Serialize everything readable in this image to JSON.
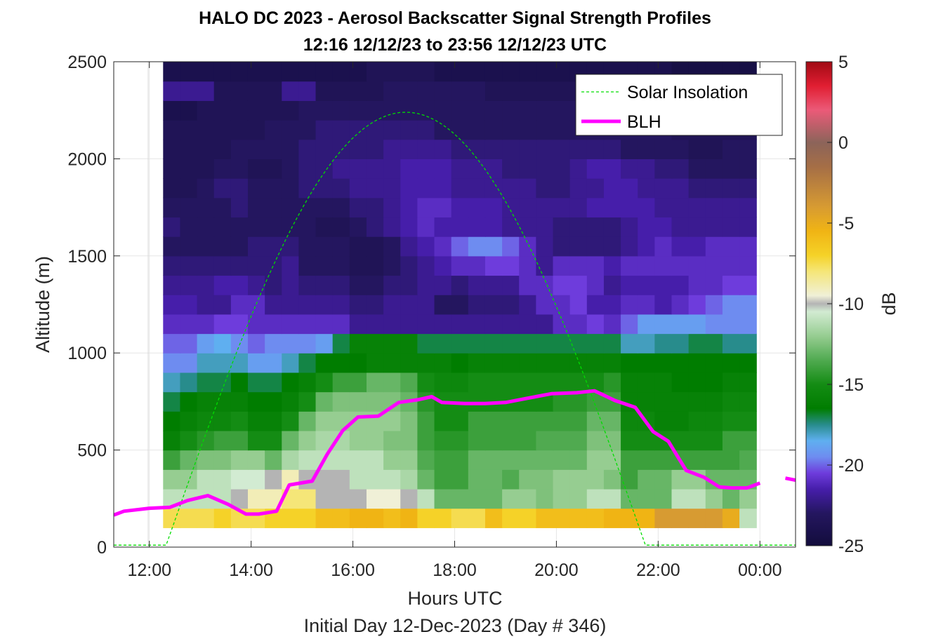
{
  "chart_data": {
    "type": "heatmap",
    "title": "HALO DC 2023 - Aerosol Backscatter Signal Strength Profiles",
    "subtitle": "12:16 12/12/23 to 23:56 12/12/23  UTC",
    "xlabel": "Hours UTC",
    "footer": "Initial Day 12-Dec-2023 (Day # 346)",
    "ylabel": "Altitude (m)",
    "colorbar_label": "dB",
    "xlim_hours": [
      11.3,
      24.7
    ],
    "ylim": [
      0,
      2500
    ],
    "x_ticks": [
      12,
      14,
      16,
      18,
      20,
      22,
      24
    ],
    "x_tick_labels": [
      "12:00",
      "14:00",
      "16:00",
      "18:00",
      "20:00",
      "22:00",
      "00:00"
    ],
    "y_ticks": [
      0,
      500,
      1000,
      1500,
      2000,
      2500
    ],
    "y_tick_labels": [
      "0",
      "500",
      "1000",
      "1500",
      "2000",
      "2500"
    ],
    "clim": [
      -25,
      5
    ],
    "c_ticks": [
      5,
      0,
      -5,
      -10,
      -15,
      -20,
      -25
    ],
    "c_tick_labels": [
      "5",
      "0",
      "-5",
      "-10",
      "-15",
      "-20",
      "-25"
    ],
    "grid": true,
    "legend_position": "top-right",
    "legend": [
      {
        "label": "Solar Insolation",
        "color": "#00dd00",
        "style": "dashed"
      },
      {
        "label": "BLH",
        "color": "#ff00ff",
        "style": "solid"
      }
    ],
    "heatmap": {
      "x_start_hours": 12.27,
      "x_end_hours": 23.93,
      "columns": 35,
      "y_start": 100,
      "y_end": 2500,
      "rows": 24,
      "value_units": "dB",
      "rows_bottom_to_top": [
        [
          -7.5,
          -7.5,
          -7.5,
          -7,
          -7.5,
          -7.5,
          -7,
          -7,
          -7,
          -6,
          -6,
          -5.5,
          -5.5,
          -6,
          -5.5,
          -7,
          -7,
          -7.5,
          -7.5,
          -6,
          -7,
          -7,
          -6,
          -6,
          -6,
          -6,
          -5.5,
          -5.5,
          -5.5,
          -4,
          -4,
          -4,
          -4,
          -5,
          -11
        ],
        [
          -11,
          -11,
          -11,
          -11,
          -10,
          -9,
          -9,
          -8,
          -8,
          -10,
          -10,
          -10,
          -9.5,
          -9.5,
          -10,
          -11,
          -13,
          -13,
          -13,
          -13,
          -12,
          -12,
          -12.5,
          -12,
          -12,
          -11,
          -11,
          -13,
          -13,
          -13,
          -11,
          -11,
          -12,
          -13,
          -12
        ],
        [
          -12,
          -12,
          -11,
          -11,
          -10.5,
          -10.5,
          -10,
          -9,
          -10,
          -10,
          -10,
          -11,
          -11,
          -11,
          -11.5,
          -13,
          -14,
          -14,
          -13,
          -13,
          -13.5,
          -12.5,
          -12.5,
          -12,
          -12,
          -12,
          -12.5,
          -14,
          -13,
          -13,
          -12,
          -12,
          -13,
          -13,
          -13
        ],
        [
          -14,
          -13,
          -12.5,
          -12.5,
          -12,
          -12,
          -13,
          -11.5,
          -11,
          -11,
          -11,
          -11,
          -11,
          -12,
          -12,
          -13.5,
          -14,
          -14,
          -13,
          -13,
          -13,
          -13,
          -13,
          -13,
          -13,
          -12,
          -12,
          -14,
          -14,
          -14,
          -14,
          -14,
          -14,
          -14,
          -13.5
        ],
        [
          -16,
          -15,
          -14.5,
          -14,
          -14,
          -15,
          -15,
          -13,
          -12,
          -11.5,
          -11.5,
          -12,
          -12,
          -12.5,
          -12.5,
          -14,
          -14.5,
          -14.5,
          -14,
          -14,
          -14,
          -14,
          -13.5,
          -13.5,
          -13.5,
          -12.5,
          -12.5,
          -15,
          -15,
          -15,
          -15,
          -15,
          -15,
          -14,
          -14
        ],
        [
          -16.5,
          -16,
          -15.5,
          -15.5,
          -15,
          -16,
          -16,
          -15,
          -13,
          -12,
          -12,
          -12,
          -12,
          -12,
          -12.5,
          -14,
          -15,
          -15,
          -14,
          -14,
          -14,
          -14,
          -14,
          -14,
          -14,
          -13,
          -13,
          -15.5,
          -15.5,
          -16,
          -16,
          -15.5,
          -15.5,
          -15,
          -15
        ],
        [
          -17,
          -16.5,
          -16,
          -16,
          -16,
          -16.5,
          -16.5,
          -16,
          -15,
          -13,
          -12.5,
          -12.5,
          -12.5,
          -12.5,
          -13,
          -14.5,
          -15,
          -15,
          -15,
          -15,
          -15,
          -15,
          -15,
          -14.5,
          -14.5,
          -14,
          -14,
          -16,
          -16,
          -16,
          -16,
          -16,
          -16,
          -15.5,
          -15.5
        ],
        [
          -18,
          -17.5,
          -17,
          -17,
          -16.5,
          -17,
          -17,
          -16.5,
          -16,
          -15,
          -14,
          -14,
          -13,
          -13,
          -13.5,
          -15,
          -15.5,
          -15.5,
          -15,
          -15,
          -15,
          -15,
          -15,
          -15,
          -15,
          -15,
          -14.5,
          -16,
          -16,
          -16,
          -16.5,
          -16.5,
          -16.5,
          -16,
          -16
        ],
        [
          -19.5,
          -19.5,
          -18,
          -18,
          -18,
          -19,
          -19,
          -18,
          -17,
          -16.5,
          -16.5,
          -16.5,
          -16,
          -16,
          -16,
          -16,
          -16,
          -16.5,
          -16,
          -16,
          -16,
          -16,
          -16,
          -16,
          -16,
          -16,
          -16,
          -16.5,
          -16.5,
          -16.5,
          -16.5,
          -16.5,
          -16.5,
          -16.5,
          -16.5
        ],
        [
          -20,
          -20,
          -19,
          -18.5,
          -19.5,
          -20,
          -19.5,
          -19.5,
          -19.5,
          -19,
          -17,
          -16,
          -16,
          -16,
          -16,
          -17,
          -17,
          -17,
          -17,
          -17,
          -17,
          -17,
          -17,
          -17,
          -17,
          -17,
          -17,
          -18,
          -18,
          -17.5,
          -17.5,
          -17,
          -17,
          -17.5,
          -17.5
        ],
        [
          -21,
          -21,
          -21,
          -20.5,
          -20.5,
          -21,
          -21,
          -21,
          -21,
          -21,
          -21,
          -22,
          -22,
          -22,
          -22,
          -22,
          -22,
          -22,
          -22,
          -22,
          -22,
          -22,
          -22,
          -21,
          -21,
          -20.5,
          -21,
          -20,
          -19,
          -19,
          -19,
          -19,
          -19.5,
          -19.5,
          -19.5
        ],
        [
          -21.5,
          -21.5,
          -22,
          -22,
          -21,
          -21,
          -22,
          -22,
          -22,
          -22,
          -22,
          -22.5,
          -22.5,
          -22,
          -22,
          -22,
          -23,
          -23,
          -22.5,
          -22.5,
          -22.5,
          -22,
          -21,
          -21,
          -20.5,
          -21.5,
          -21.5,
          -21,
          -21,
          -21.5,
          -21,
          -20.5,
          -20,
          -19.5,
          -19.5
        ],
        [
          -22,
          -22,
          -22,
          -21.5,
          -21.5,
          -22,
          -22.5,
          -22,
          -22.5,
          -22.5,
          -22.5,
          -23,
          -23,
          -22.5,
          -22.5,
          -22,
          -22,
          -22.5,
          -22,
          -22,
          -22,
          -21,
          -21,
          -20.5,
          -20.5,
          -21,
          -22,
          -21.5,
          -21.5,
          -21.5,
          -21.5,
          -21,
          -21,
          -20.5,
          -20.5
        ],
        [
          -22.5,
          -22.5,
          -22.5,
          -22.5,
          -22.5,
          -22.5,
          -22.5,
          -22,
          -23,
          -23,
          -23,
          -23.5,
          -23.5,
          -23,
          -22.5,
          -22,
          -21.5,
          -21,
          -21,
          -20.5,
          -20.5,
          -21,
          -22,
          -21,
          -21,
          -21,
          -21.5,
          -21,
          -21,
          -21,
          -21,
          -21,
          -21,
          -21,
          -21
        ],
        [
          -23,
          -23,
          -23,
          -23,
          -23,
          -22.5,
          -22.5,
          -22.5,
          -23,
          -23,
          -23,
          -23.5,
          -23.5,
          -23,
          -22,
          -21.5,
          -21,
          -20,
          -19.5,
          -19.5,
          -20,
          -21,
          -22,
          -22.5,
          -22.5,
          -22.5,
          -22.5,
          -22,
          -21.5,
          -21,
          -21.5,
          -21.5,
          -21,
          -21,
          -21
        ],
        [
          -22.5,
          -23,
          -23,
          -23,
          -23,
          -23,
          -23,
          -23,
          -23,
          -23.5,
          -23.5,
          -23,
          -22.5,
          -22,
          -21.5,
          -21,
          -21.5,
          -21.5,
          -21.5,
          -21.5,
          -22,
          -22,
          -22,
          -22.5,
          -22.5,
          -22.5,
          -22.5,
          -22,
          -21.5,
          -21.5,
          -22,
          -22,
          -22,
          -22,
          -22
        ],
        [
          -23,
          -23,
          -23,
          -23,
          -22.5,
          -23,
          -23,
          -23,
          -23,
          -23,
          -23,
          -22.5,
          -22.5,
          -22,
          -21.5,
          -21,
          -21,
          -21.5,
          -21.5,
          -21.5,
          -22,
          -22,
          -22,
          -22,
          -22,
          -21.5,
          -21.5,
          -21.5,
          -21.5,
          -22,
          -22,
          -22,
          -22,
          -22,
          -22
        ],
        [
          -23.5,
          -23.5,
          -23,
          -22.5,
          -22.5,
          -23,
          -23,
          -23,
          -22.5,
          -22.5,
          -22.5,
          -22,
          -22,
          -22,
          -21.5,
          -21.5,
          -21.5,
          -22,
          -22,
          -22,
          -22,
          -22,
          -22.5,
          -22.5,
          -22,
          -22,
          -21.5,
          -21.5,
          -22,
          -22,
          -22,
          -22.5,
          -22.5,
          -22.5,
          -22.5
        ],
        [
          -23.5,
          -23.5,
          -23.5,
          -23,
          -23,
          -23.5,
          -23.5,
          -23,
          -22.5,
          -22.5,
          -22,
          -22,
          -22,
          -22,
          -21.5,
          -21.5,
          -21.5,
          -22,
          -22,
          -22,
          -22.5,
          -22.5,
          -22.5,
          -22.5,
          -22,
          -21.5,
          -21.5,
          -22,
          -22,
          -22.5,
          -22.5,
          -23,
          -23,
          -23,
          -23
        ],
        [
          -23.5,
          -23.5,
          -23.5,
          -23.5,
          -23,
          -23,
          -23,
          -23,
          -22.5,
          -22.5,
          -22.5,
          -22.5,
          -22.5,
          -22,
          -22,
          -22,
          -22,
          -22.5,
          -22.5,
          -22.5,
          -22.5,
          -22.5,
          -22.5,
          -22.5,
          -22.5,
          -22.5,
          -22.5,
          -23,
          -23,
          -23,
          -23,
          -23.5,
          -23.5,
          -23,
          -23
        ],
        [
          -23.5,
          -23.5,
          -23.5,
          -23.5,
          -23.5,
          -23.5,
          -23,
          -23,
          -23,
          -22.5,
          -22.5,
          -22.5,
          -22.5,
          -22.5,
          -22.5,
          -22.5,
          -23,
          -23,
          -23,
          -23,
          -23,
          -23,
          -23,
          -23,
          -23,
          -23,
          -23,
          -23,
          -23,
          -23,
          -23.5,
          -23.5,
          -23.5,
          -23.5,
          -23.5
        ],
        [
          -24,
          -24,
          -23.5,
          -23.5,
          -23.5,
          -23.5,
          -23.5,
          -23.5,
          -23,
          -23,
          -23,
          -23,
          -23,
          -23,
          -23,
          -23,
          -23,
          -23,
          -23,
          -23,
          -23,
          -23,
          -23,
          -23,
          -23,
          -23,
          -23,
          -23.5,
          -23.5,
          -23.5,
          -23.5,
          -24,
          -24,
          -24,
          -24
        ],
        [
          -22,
          -22,
          -22,
          -23.5,
          -23.5,
          -23.5,
          -23.5,
          -22,
          -22,
          -23.5,
          -23.5,
          -23.5,
          -23.5,
          -23,
          -23,
          -23,
          -23,
          -23,
          -23,
          -23.5,
          -23.5,
          -23.5,
          -23.5,
          -23.5,
          -23.5,
          -23.5,
          -23.5,
          -23.5,
          -24,
          -24,
          -24,
          -24,
          -24,
          -24,
          -24
        ],
        [
          -24,
          -24,
          -24,
          -24,
          -24,
          -24,
          -24,
          -24,
          -24,
          -24,
          -24,
          -24,
          -23.5,
          -23.5,
          -23.5,
          -23.5,
          -24,
          -24,
          -24,
          -24,
          -24,
          -24,
          -24,
          -24,
          -24,
          -24,
          -24,
          -24,
          -24,
          -24,
          -24.5,
          -24.5,
          -24.5,
          -24.5,
          -24.5
        ]
      ]
    },
    "series": [
      {
        "name": "BLH",
        "x_hours": [
          11.3,
          11.5,
          12.0,
          12.4,
          12.75,
          13.15,
          13.55,
          13.9,
          14.15,
          14.5,
          14.75,
          15.2,
          15.5,
          15.8,
          16.1,
          16.5,
          16.9,
          17.3,
          17.55,
          17.75,
          18.2,
          18.6,
          19.0,
          19.4,
          19.9,
          20.4,
          20.75,
          21.15,
          21.55,
          21.9,
          22.2,
          22.55,
          22.9,
          23.2,
          23.45,
          23.75,
          24.0
        ],
        "y": [
          165,
          185,
          200,
          205,
          240,
          265,
          220,
          170,
          170,
          185,
          320,
          340,
          480,
          600,
          670,
          675,
          745,
          760,
          775,
          745,
          740,
          740,
          745,
          765,
          790,
          795,
          805,
          755,
          720,
          595,
          545,
          395,
          360,
          310,
          305,
          305,
          330
        ]
      },
      {
        "name": "BLH",
        "x_hours": [
          24.5,
          24.7
        ],
        "y": [
          355,
          345
        ]
      },
      {
        "name": "Solar Insolation",
        "sunrise_hours": 12.33,
        "sunset_hours": 21.75,
        "peak_hours": 17.04,
        "peak_altitude": 2240,
        "baseline_altitude": 10
      }
    ]
  }
}
